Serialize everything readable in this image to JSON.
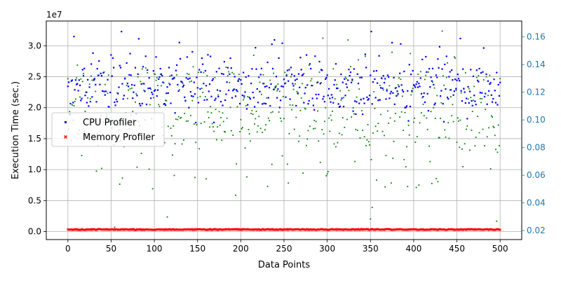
{
  "chart_data": {
    "type": "scatter",
    "xlabel": "Data Points",
    "ylabel": "Execution Time (sec.)",
    "y_offset_label": "1e7",
    "xlim": [
      -25,
      525
    ],
    "ylim": [
      -1300000,
      34000000
    ],
    "y2lim": [
      0.0135,
      0.1715
    ],
    "x_ticks": [
      0,
      50,
      100,
      150,
      200,
      250,
      300,
      350,
      400,
      450,
      500
    ],
    "y_ticks": [
      0,
      5000000,
      10000000,
      15000000,
      20000000,
      25000000,
      30000000
    ],
    "y_tick_labels": [
      "0.0",
      "0.5",
      "1.0",
      "1.5",
      "2.0",
      "2.5",
      "3.0"
    ],
    "y2_ticks": [
      0.02,
      0.04,
      0.06,
      0.08,
      0.1,
      0.12,
      0.14,
      0.16
    ],
    "y2_tick_labels": [
      "0.02",
      "0.04",
      "0.06",
      "0.08",
      "0.10",
      "0.12",
      "0.14",
      "0.16"
    ],
    "grid": true,
    "legend_position": "center-left",
    "colors": {
      "cpu": "#0000ff",
      "memory": "#ff0000",
      "secondary": "#008000",
      "right_axis": "#1f77b4"
    },
    "series": [
      {
        "name": "CPU Profiler",
        "axis": "left",
        "marker": "point",
        "color": "#0000ff",
        "x_range": [
          0,
          500
        ],
        "summary": "one point per data point, mostly between 1.7e7 and 3.0e7 sec., max about 3.23e7"
      },
      {
        "name": "Memory Profiler",
        "axis": "left",
        "marker": "x",
        "color": "#ff0000",
        "x_range": [
          0,
          500
        ],
        "summary": "one point per data point, all about 0.02e7 to 0.04e7 sec."
      },
      {
        "axis": "right",
        "marker": "point",
        "color": "#008000",
        "x_range": [
          0,
          500
        ],
        "summary": "one point per data point, spread between about 0.02 and 0.16, mostly 0.06 to 0.14"
      }
    ]
  }
}
